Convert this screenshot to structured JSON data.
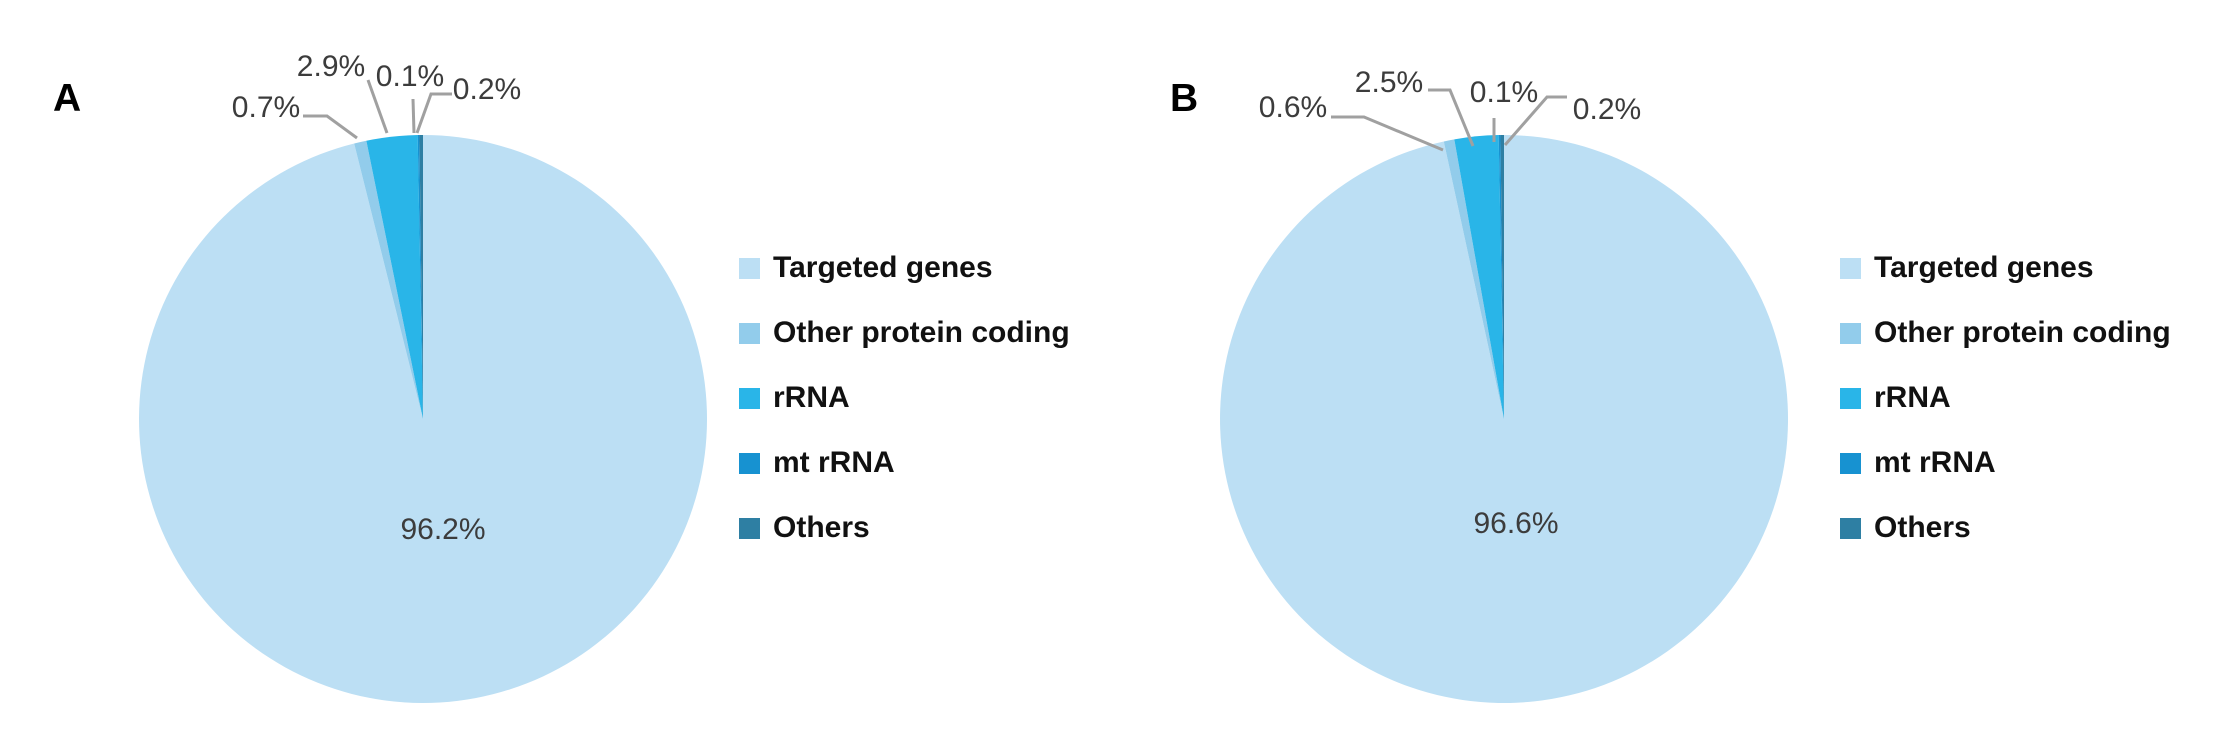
{
  "chart_data": [
    {
      "type": "pie",
      "panel": "A",
      "categories": [
        "Targeted genes",
        "Other protein coding",
        "rRNA",
        "mt rRNA",
        "Others"
      ],
      "values": [
        96.2,
        0.7,
        2.9,
        0.1,
        0.2
      ],
      "slice_labels": [
        "96.2%",
        "0.7%",
        "2.9%",
        "0.1%",
        "0.2%"
      ],
      "colors": [
        "#BCDFF4",
        "#92CCEB",
        "#29B5E8",
        "#1792D1",
        "#2E7FA3"
      ],
      "start_angle_deg": -90,
      "direction": "clockwise",
      "legend_position": "right",
      "grid": false
    },
    {
      "type": "pie",
      "panel": "B",
      "categories": [
        "Targeted genes",
        "Other protein coding",
        "rRNA",
        "mt rRNA",
        "Others"
      ],
      "values": [
        96.6,
        0.6,
        2.5,
        0.1,
        0.2
      ],
      "slice_labels": [
        "96.6%",
        "0.6%",
        "2.5%",
        "0.1%",
        "0.2%"
      ],
      "colors": [
        "#BCDFF4",
        "#92CCEB",
        "#29B5E8",
        "#1792D1",
        "#2E7FA3"
      ],
      "start_angle_deg": -90,
      "direction": "clockwise",
      "legend_position": "right",
      "grid": false
    }
  ],
  "style": {
    "background": "#FFFFFF",
    "leader_color": "#A0A0A0",
    "label_text_color": "#3C3C3C",
    "legend_text_color": "#111111",
    "panel_label_color": "#000000"
  }
}
